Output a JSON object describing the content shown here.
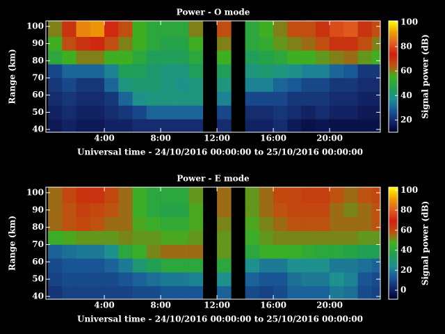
{
  "chart_data": [
    {
      "type": "heatmap",
      "title": "Power - O mode",
      "xlabel": "Universal time - 24/10/2016 00:00:00 to 25/10/2016 00:00:00",
      "ylabel": "Range (km)",
      "colorbar_label": "Signal power (dB)",
      "x_bins": [
        0,
        1,
        2,
        3,
        4,
        5,
        6,
        7,
        8,
        9,
        10,
        11,
        12,
        13,
        14,
        15,
        16,
        17,
        18,
        19,
        20,
        21,
        22,
        23,
        23.6
      ],
      "y_bins": [
        38,
        46,
        54,
        62,
        70,
        78,
        86,
        94,
        104
      ],
      "values": [
        [
          16,
          18,
          16,
          16,
          18,
          18,
          20,
          20,
          20,
          20,
          20,
          null,
          20,
          null,
          18,
          18,
          20,
          16,
          14,
          15,
          14,
          14,
          14,
          14
        ],
        [
          18,
          20,
          18,
          18,
          20,
          22,
          25,
          30,
          30,
          30,
          30,
          null,
          25,
          null,
          20,
          20,
          22,
          20,
          18,
          20,
          18,
          18,
          16,
          16
        ],
        [
          20,
          22,
          20,
          20,
          22,
          30,
          38,
          40,
          40,
          40,
          40,
          null,
          35,
          null,
          25,
          25,
          25,
          22,
          22,
          22,
          20,
          20,
          18,
          18
        ],
        [
          22,
          25,
          22,
          22,
          30,
          40,
          42,
          42,
          40,
          38,
          40,
          null,
          40,
          null,
          35,
          35,
          30,
          28,
          25,
          25,
          22,
          22,
          20,
          20
        ],
        [
          25,
          30,
          30,
          30,
          35,
          45,
          45,
          42,
          40,
          40,
          45,
          null,
          45,
          null,
          40,
          42,
          40,
          38,
          35,
          35,
          30,
          28,
          22,
          22
        ],
        [
          50,
          55,
          60,
          60,
          55,
          55,
          50,
          45,
          45,
          45,
          50,
          null,
          55,
          null,
          45,
          48,
          50,
          55,
          55,
          58,
          60,
          62,
          58,
          55
        ],
        [
          55,
          65,
          70,
          72,
          65,
          60,
          55,
          50,
          48,
          48,
          55,
          null,
          60,
          null,
          50,
          52,
          58,
          60,
          62,
          65,
          70,
          70,
          65,
          60
        ],
        [
          60,
          70,
          88,
          90,
          75,
          65,
          55,
          50,
          50,
          50,
          60,
          null,
          65,
          null,
          50,
          55,
          60,
          65,
          65,
          70,
          80,
          82,
          70,
          65
        ]
      ],
      "xlim": [
        -0.15,
        23.6
      ],
      "ylim": [
        38.4,
        103.2
      ],
      "xticks": [
        {
          "value": 4,
          "label": "4:00"
        },
        {
          "value": 8,
          "label": "8:00"
        },
        {
          "value": 12,
          "label": "12:00"
        },
        {
          "value": 16,
          "label": "16:00"
        },
        {
          "value": 20,
          "label": "20:00"
        }
      ],
      "yticks": [
        40,
        50,
        60,
        70,
        80,
        90,
        100
      ],
      "zlim": [
        10,
        101
      ],
      "zticks": [
        20,
        40,
        60,
        80,
        100
      ],
      "colormap": [
        "#000030",
        "#14286a",
        "#1a5a9a",
        "#1e9090",
        "#20a050",
        "#40b020",
        "#c05010",
        "#d02010",
        "#e06020",
        "#f0a000",
        "#ffff00"
      ]
    },
    {
      "type": "heatmap",
      "title": "Power - E mode",
      "xlabel": "Universal time - 24/10/2016 00:00:00 to 25/10/2016 00:00:00",
      "ylabel": "Range (km)",
      "colorbar_label": "Signal power (dB)",
      "x_bins": [
        0,
        1,
        2,
        3,
        4,
        5,
        6,
        7,
        8,
        9,
        10,
        11,
        12,
        13,
        14,
        15,
        16,
        17,
        18,
        19,
        20,
        21,
        22,
        23,
        23.6
      ],
      "y_bins": [
        38,
        46,
        54,
        62,
        70,
        78,
        86,
        94,
        104
      ],
      "values": [
        [
          5,
          8,
          8,
          8,
          8,
          8,
          10,
          10,
          12,
          12,
          12,
          null,
          15,
          null,
          10,
          8,
          10,
          15,
          15,
          15,
          20,
          18,
          10,
          8
        ],
        [
          8,
          10,
          10,
          10,
          10,
          12,
          15,
          18,
          20,
          20,
          22,
          null,
          25,
          null,
          15,
          12,
          12,
          18,
          20,
          20,
          25,
          22,
          12,
          10
        ],
        [
          10,
          12,
          12,
          12,
          15,
          20,
          30,
          35,
          40,
          40,
          40,
          null,
          40,
          null,
          25,
          20,
          20,
          25,
          25,
          25,
          20,
          20,
          18,
          15
        ],
        [
          15,
          18,
          20,
          20,
          25,
          40,
          45,
          52,
          55,
          55,
          55,
          null,
          50,
          null,
          40,
          45,
          45,
          45,
          42,
          40,
          40,
          38,
          35,
          35
        ],
        [
          45,
          48,
          50,
          50,
          50,
          52,
          50,
          50,
          48,
          48,
          50,
          null,
          50,
          null,
          45,
          50,
          52,
          52,
          52,
          52,
          52,
          52,
          50,
          50
        ],
        [
          55,
          58,
          60,
          58,
          55,
          55,
          48,
          45,
          42,
          42,
          48,
          null,
          52,
          null,
          48,
          52,
          55,
          58,
          58,
          58,
          55,
          55,
          55,
          58
        ],
        [
          55,
          58,
          62,
          60,
          58,
          55,
          45,
          40,
          38,
          38,
          48,
          null,
          55,
          null,
          50,
          55,
          58,
          60,
          60,
          60,
          55,
          52,
          55,
          58
        ],
        [
          55,
          60,
          65,
          65,
          60,
          55,
          45,
          40,
          40,
          40,
          50,
          null,
          55,
          null,
          50,
          55,
          60,
          60,
          62,
          62,
          58,
          55,
          58,
          60
        ]
      ],
      "xlim": [
        -0.15,
        23.6
      ],
      "ylim": [
        38.4,
        103.2
      ],
      "xticks": [
        {
          "value": 4,
          "label": "4:00"
        },
        {
          "value": 8,
          "label": "8:00"
        },
        {
          "value": 12,
          "label": "12:00"
        },
        {
          "value": 16,
          "label": "16:00"
        },
        {
          "value": 20,
          "label": "20:00"
        }
      ],
      "yticks": [
        40,
        50,
        60,
        70,
        80,
        90,
        100
      ],
      "zlim": [
        -9,
        103
      ],
      "zticks": [
        0,
        20,
        40,
        60,
        80,
        100
      ],
      "colormap": [
        "#000030",
        "#14286a",
        "#1a5a9a",
        "#1e9090",
        "#20a050",
        "#40b020",
        "#c05010",
        "#d02010",
        "#e06020",
        "#f0a000",
        "#ffff00"
      ]
    }
  ]
}
